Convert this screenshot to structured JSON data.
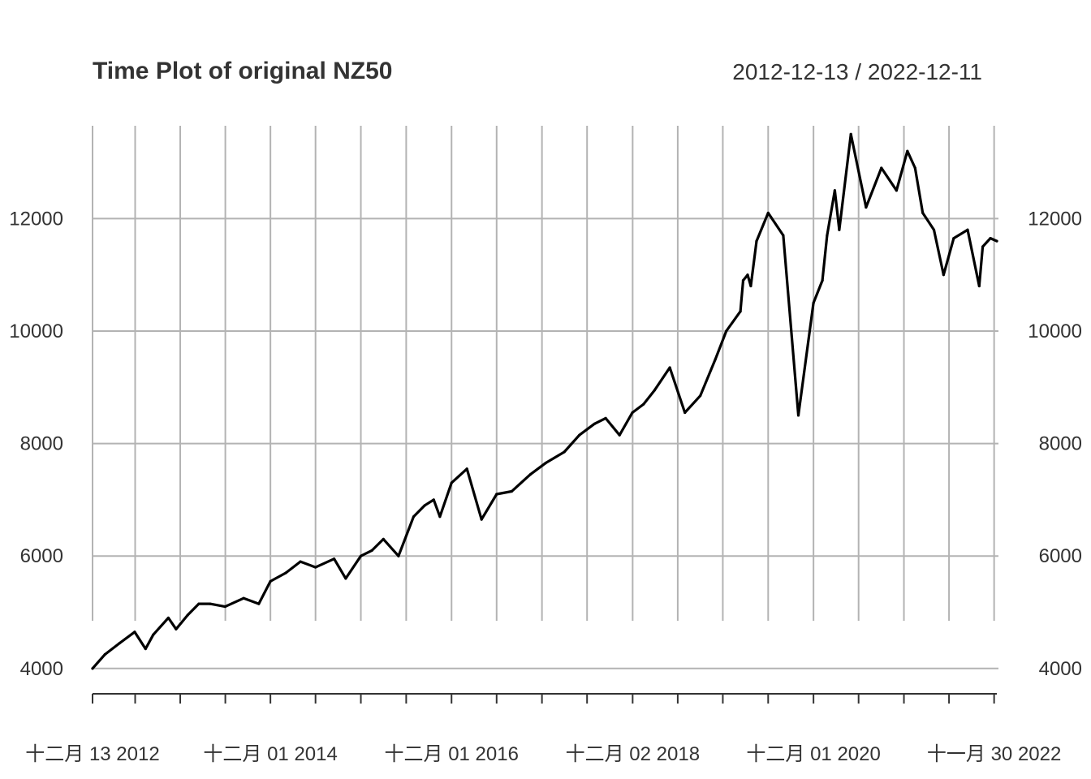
{
  "chart_data": {
    "type": "line",
    "title": "Time Plot of original NZ50",
    "date_range_label": "2012-12-13 / 2022-12-11",
    "y_ticks": [
      4000,
      6000,
      8000,
      10000,
      12000
    ],
    "y_tick_labels": [
      "4000",
      "6000",
      "8000",
      "10000",
      "12000"
    ],
    "ylim": [
      3550,
      13650
    ],
    "x_range": [
      "2012-12-13",
      "2022-12-11"
    ],
    "x_tick_labels": [
      {
        "date": "2012-12-13",
        "label": "十二月 13 2012"
      },
      {
        "date": "2014-12-01",
        "label": "十二月 01 2014"
      },
      {
        "date": "2016-12-01",
        "label": "十二月 01 2016"
      },
      {
        "date": "2018-12-02",
        "label": "十二月 02 2018"
      },
      {
        "date": "2020-12-01",
        "label": "十二月 01 2020"
      },
      {
        "date": "2022-11-30",
        "label": "十一月 30 2022"
      }
    ],
    "x_gridlines": [
      "2012-12-13",
      "2013-06-03",
      "2013-12-02",
      "2014-06-02",
      "2014-12-01",
      "2015-06-01",
      "2015-12-01",
      "2016-06-01",
      "2016-12-01",
      "2017-06-01",
      "2017-12-01",
      "2018-06-01",
      "2018-12-02",
      "2019-06-02",
      "2019-12-01",
      "2020-06-01",
      "2020-12-01",
      "2021-06-01",
      "2021-12-01",
      "2022-06-01",
      "2022-11-30"
    ],
    "grid": true,
    "series": [
      {
        "x": [
          "2012-12-13",
          "2013-02-01",
          "2013-04-01",
          "2013-06-01",
          "2013-07-15",
          "2013-08-15",
          "2013-10-15",
          "2013-11-15",
          "2014-01-01",
          "2014-02-15",
          "2014-04-01",
          "2014-06-01",
          "2014-08-15",
          "2014-10-15",
          "2014-12-01",
          "2015-02-01",
          "2015-04-01",
          "2015-06-01",
          "2015-08-15",
          "2015-10-01",
          "2015-12-01",
          "2016-01-15",
          "2016-03-01",
          "2016-05-01",
          "2016-07-01",
          "2016-08-15",
          "2016-09-20",
          "2016-10-15",
          "2016-12-01",
          "2017-02-01",
          "2017-04-01",
          "2017-06-01",
          "2017-08-01",
          "2017-10-15",
          "2017-12-15",
          "2018-03-01",
          "2018-05-01",
          "2018-07-01",
          "2018-08-15",
          "2018-10-10",
          "2018-12-01",
          "2019-01-15",
          "2019-03-01",
          "2019-05-01",
          "2019-07-01",
          "2019-09-01",
          "2019-11-01",
          "2019-12-15",
          "2020-02-10",
          "2020-02-21",
          "2020-03-10",
          "2020-03-23",
          "2020-04-15",
          "2020-06-01",
          "2020-08-01",
          "2020-10-01",
          "2020-12-01",
          "2021-01-06",
          "2021-01-25",
          "2021-02-25",
          "2021-03-15",
          "2021-05-01",
          "2021-07-01",
          "2021-09-01",
          "2021-11-01",
          "2021-12-15",
          "2022-01-15",
          "2022-02-15",
          "2022-04-01",
          "2022-05-10",
          "2022-06-20",
          "2022-08-15",
          "2022-10-01",
          "2022-10-15",
          "2022-11-15",
          "2022-12-11"
        ],
        "values": [
          4000,
          4250,
          4450,
          4650,
          4350,
          4600,
          4900,
          4700,
          4950,
          5150,
          5150,
          5100,
          5250,
          5150,
          5550,
          5700,
          5900,
          5800,
          5950,
          5600,
          6000,
          6100,
          6300,
          6000,
          6700,
          6900,
          7000,
          6700,
          7300,
          7550,
          6650,
          7100,
          7150,
          7450,
          7650,
          7850,
          8150,
          8350,
          8450,
          8150,
          8550,
          8700,
          8950,
          9350,
          8550,
          8850,
          9500,
          10000,
          10350,
          10900,
          11000,
          10800,
          11600,
          12100,
          11700,
          8500,
          10500,
          10900,
          11700,
          12500,
          11800,
          13500,
          12200,
          12900,
          12500,
          13200,
          12900,
          12100,
          11800,
          11000,
          11650,
          11800,
          10800,
          11500,
          11650,
          11600
        ]
      }
    ]
  }
}
